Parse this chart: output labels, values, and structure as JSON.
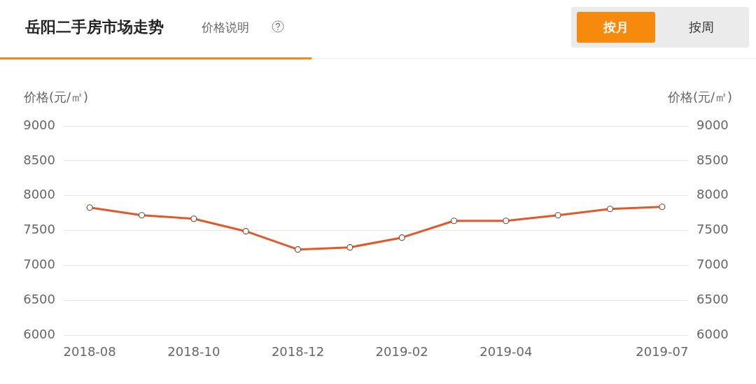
{
  "chart_data": {
    "type": "line",
    "title": "岳阳二手房市场走势",
    "subtitle": "价格说明",
    "annotations": [
      "按月",
      "按周"
    ],
    "ylabel": "价格(元/㎡)",
    "y2label": "价格(元/㎡)",
    "categories": [
      "2018-08",
      null,
      "2018-10",
      null,
      "2018-12",
      null,
      "2019-02",
      null,
      "2019-04",
      null,
      null,
      "2019-07"
    ],
    "series": [
      {
        "color": "#e0592a",
        "values": [
          7830,
          7720,
          7670,
          7490,
          7230,
          7260,
          7400,
          7640,
          7640,
          7720,
          7810,
          7840
        ]
      }
    ],
    "ylim": [
      6000,
      9000
    ],
    "yticks": [
      6000,
      6500,
      7000,
      7500,
      8000,
      8500,
      9000
    ],
    "y2lim": [
      6000,
      9000
    ],
    "y2ticks": [
      6000,
      6500,
      7000,
      7500,
      8000,
      8500,
      9000
    ],
    "grid": "y",
    "marker": "circle",
    "line_style": "solid"
  }
}
